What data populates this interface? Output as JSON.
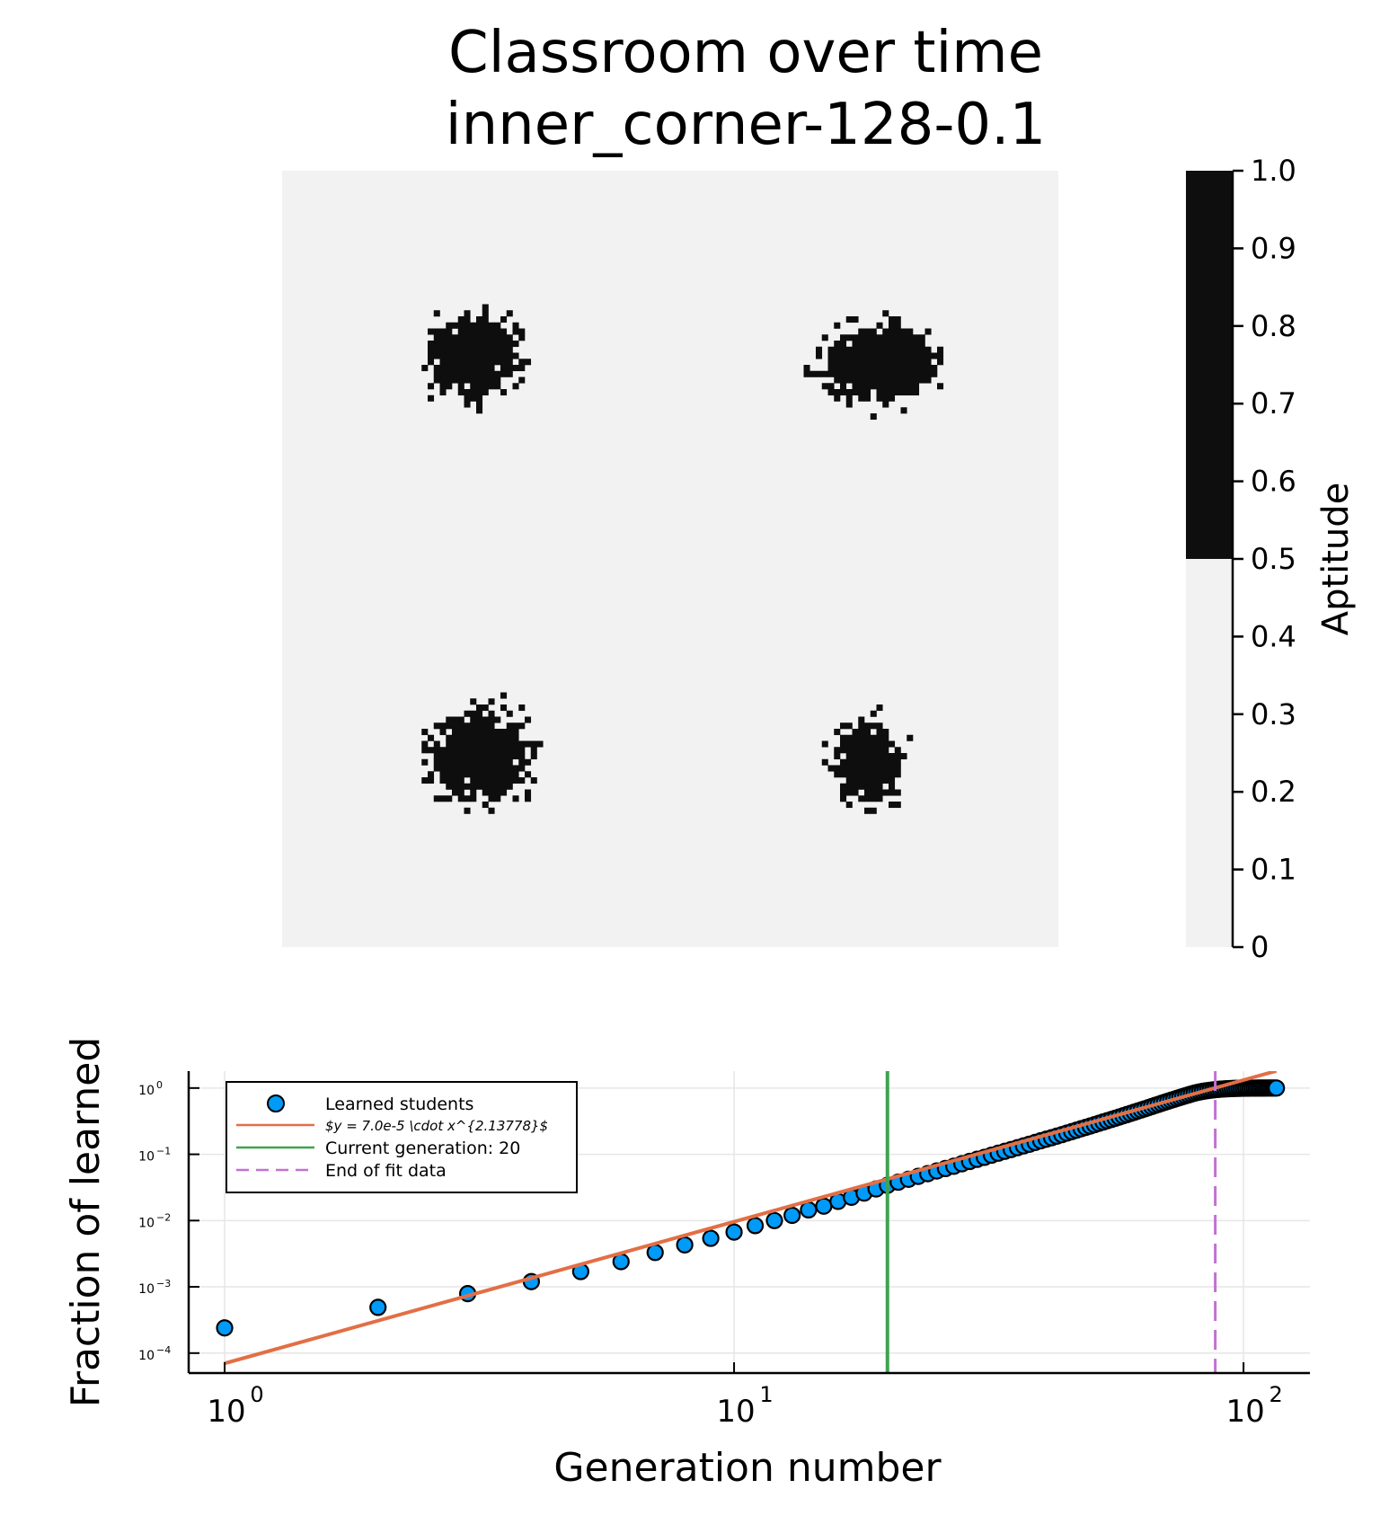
{
  "title_line1": "Classroom over time",
  "title_line2": "inner_corner-128-0.1",
  "colors": {
    "light": "#f2f2f2",
    "dark": "#0e0e0e",
    "scatter": "#009af9",
    "fit": "#e26f46",
    "current": "#3ea44e",
    "end": "#c271d2"
  },
  "chart_data": [
    {
      "type": "heatmap",
      "grid_size": 128,
      "colorbar": {
        "label": "Aptitude",
        "ticks": [
          "0",
          "0.1",
          "0.2",
          "0.3",
          "0.4",
          "0.5",
          "0.6",
          "0.7",
          "0.8",
          "0.9",
          "1.0"
        ],
        "range": [
          0,
          1
        ],
        "threshold": 0.5
      },
      "background_value": 0,
      "clusters": [
        {
          "cx": 31,
          "cy": 30,
          "rx": 7.5,
          "ry": 6.5,
          "value": 1
        },
        {
          "cx": 98,
          "cy": 31,
          "rx": 8.5,
          "ry": 6.5,
          "value": 1
        },
        {
          "cx": 32,
          "cy": 96,
          "rx": 7.5,
          "ry": 7.5,
          "value": 1
        },
        {
          "cx": 96,
          "cy": 97,
          "rx": 5.5,
          "ry": 6.5,
          "value": 1
        }
      ]
    },
    {
      "type": "scatter",
      "xlabel": "Generation number",
      "ylabel": "Fraction of learned",
      "xscale": "log10",
      "yscale": "log10",
      "xlim": [
        0.85,
        135
      ],
      "ylim": [
        5e-05,
        1.8
      ],
      "xticks": [
        {
          "value": 1,
          "base": "10",
          "exp": "0"
        },
        {
          "value": 10,
          "base": "10",
          "exp": "1"
        },
        {
          "value": 100,
          "base": "10",
          "exp": "2"
        }
      ],
      "yticks": [
        {
          "value": 0.0001,
          "base": "10",
          "exp": "−4"
        },
        {
          "value": 0.001,
          "base": "10",
          "exp": "−3"
        },
        {
          "value": 0.01,
          "base": "10",
          "exp": "−2"
        },
        {
          "value": 0.1,
          "base": "10",
          "exp": "−1"
        },
        {
          "value": 1,
          "base": "10",
          "exp": "0"
        }
      ],
      "grid": true,
      "legend_position": "top-left",
      "series": [
        {
          "name": "Learned students",
          "kind": "scatter",
          "x": [
            1,
            2,
            3,
            4,
            5,
            6,
            7,
            8,
            9,
            10,
            11,
            12,
            13,
            14,
            15,
            16,
            17,
            18,
            19,
            20,
            21,
            22,
            23,
            24,
            25,
            26,
            27,
            28,
            29,
            30,
            31,
            32,
            33,
            34,
            35,
            36,
            37,
            38,
            39,
            40,
            41,
            42,
            43,
            44,
            45,
            46,
            47,
            48,
            49,
            50,
            51,
            52,
            53,
            54,
            55,
            56,
            57,
            58,
            59,
            60,
            61,
            62,
            63,
            64,
            65,
            66,
            67,
            68,
            69,
            70,
            71,
            72,
            73,
            74,
            75,
            76,
            77,
            78,
            79,
            80,
            81,
            82,
            83,
            84,
            85,
            86,
            87,
            88,
            89,
            90,
            91,
            92,
            93,
            94,
            95,
            96,
            97,
            98,
            99,
            100,
            101,
            102,
            103,
            104,
            105,
            106,
            107,
            108,
            109,
            110,
            111,
            112,
            113,
            114,
            115,
            116
          ],
          "y": [
            0.00024,
            0.00049,
            0.00079,
            0.0012,
            0.0017,
            0.0024,
            0.0033,
            0.0043,
            0.0054,
            0.0067,
            0.0084,
            0.01,
            0.012,
            0.0145,
            0.0165,
            0.0195,
            0.0225,
            0.026,
            0.03,
            0.034,
            0.038,
            0.042,
            0.0465,
            0.051,
            0.056,
            0.061,
            0.066,
            0.072,
            0.078,
            0.084,
            0.09,
            0.097,
            0.104,
            0.111,
            0.118,
            0.126,
            0.134,
            0.142,
            0.151,
            0.16,
            0.169,
            0.178,
            0.188,
            0.198,
            0.209,
            0.22,
            0.231,
            0.243,
            0.255,
            0.267,
            0.28,
            0.293,
            0.307,
            0.321,
            0.335,
            0.35,
            0.365,
            0.381,
            0.397,
            0.414,
            0.431,
            0.449,
            0.467,
            0.486,
            0.505,
            0.525,
            0.545,
            0.566,
            0.587,
            0.608,
            0.63,
            0.652,
            0.674,
            0.697,
            0.72,
            0.743,
            0.766,
            0.789,
            0.812,
            0.835,
            0.855,
            0.873,
            0.889,
            0.903,
            0.915,
            0.926,
            0.936,
            0.945,
            0.953,
            0.96,
            0.966,
            0.971,
            0.976,
            0.98,
            0.983,
            0.986,
            0.988,
            0.99,
            0.992,
            0.993,
            0.994,
            0.995,
            0.996,
            0.997,
            0.997,
            0.998,
            0.998,
            0.999,
            0.999,
            0.999,
            1,
            1,
            1,
            1,
            1,
            1
          ]
        },
        {
          "name": "$y = 7.0e-5 \\cdot x^{2.13778}$",
          "kind": "line",
          "coefficient": 7e-05,
          "exponent": 2.13778,
          "x_range": [
            1,
            116
          ]
        },
        {
          "name": "Current generation: 20",
          "kind": "vline",
          "x": 20
        },
        {
          "name": "End of fit data",
          "kind": "vline-dashed",
          "x": 88
        }
      ]
    }
  ]
}
